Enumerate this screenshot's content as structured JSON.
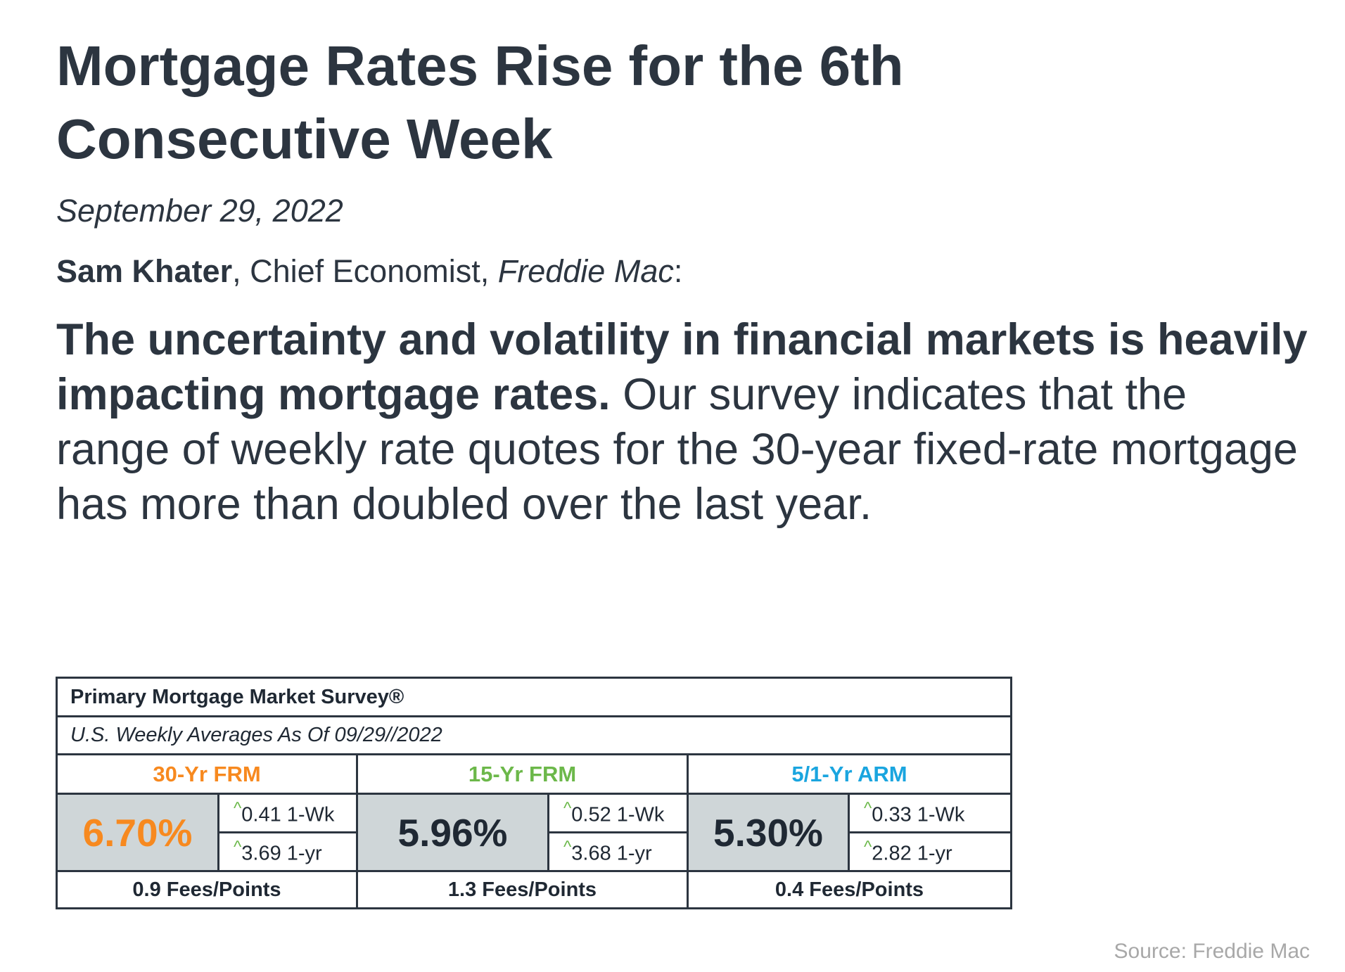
{
  "title": "Mortgage Rates Rise for the 6th Consecutive Week",
  "date": "September 29, 2022",
  "byline": {
    "name": "Sam Khater",
    "role": ", Chief Economist, ",
    "org": "Freddie Mac",
    "suffix": ":"
  },
  "quote": {
    "lead": "The uncertainty and volatility in financial markets is heavily impacting mortgage rates.",
    "body": " Our survey indicates that the range of weekly rate quotes for the 30-year fixed-rate mortgage has more than doubled over the last year."
  },
  "survey": {
    "title": "Primary Mortgage Market Survey®",
    "subtitle": "U.S. Weekly Averages As Of 09/29//2022",
    "change_marker": "^",
    "products": [
      {
        "label": "30-Yr FRM",
        "rate": "6.70%",
        "week_change": "0.41 1-Wk",
        "year_change": "3.69 1-yr",
        "fees": "0.9 Fees/Points"
      },
      {
        "label": "15-Yr FRM",
        "rate": "5.96%",
        "week_change": "0.52 1-Wk",
        "year_change": "3.68 1-yr",
        "fees": "1.3 Fees/Points"
      },
      {
        "label": "5/1-Yr ARM",
        "rate": "5.30%",
        "week_change": "0.33 1-Wk",
        "year_change": "2.82 1-yr",
        "fees": "0.4 Fees/Points"
      }
    ]
  },
  "colors": {
    "frm30": "#f7891f",
    "frm15": "#6cb84a",
    "arm51": "#1aa5df",
    "text": "#2c3540",
    "rate_cell_bg": "#cfd6d8",
    "change_caret": "#6cb84a"
  },
  "source": "Source: Freddie Mac"
}
